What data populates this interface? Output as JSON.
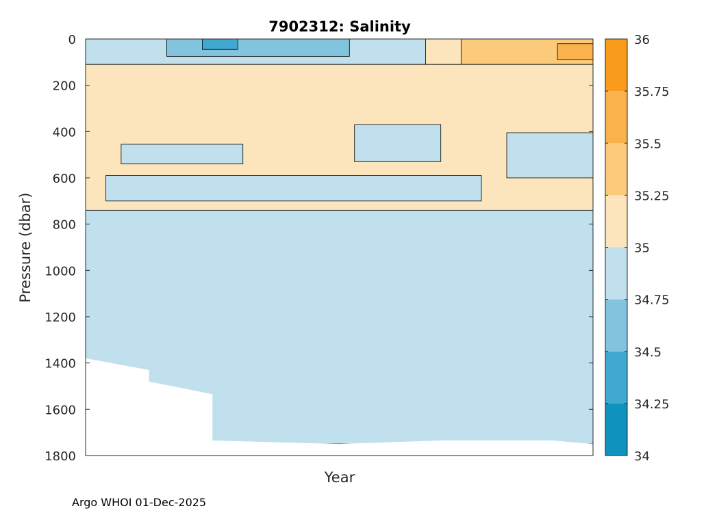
{
  "chart_data": {
    "type": "filled-contour",
    "title": "7902312:  Salinity",
    "xlabel": "Year",
    "ylabel": "Pressure (dbar)",
    "y_axis": {
      "range": [
        0,
        1800
      ],
      "reversed": true,
      "ticks": [
        0,
        200,
        400,
        600,
        800,
        1000,
        1200,
        1400,
        1600,
        1800
      ]
    },
    "x_axis": {
      "range": [
        0,
        1
      ],
      "tick_labels": []
    },
    "colorbar": {
      "range": [
        34,
        36
      ],
      "ticks": [
        34,
        34.25,
        34.5,
        34.75,
        35,
        35.25,
        35.5,
        35.75,
        36
      ],
      "levels": [
        {
          "from": 34.0,
          "to": 34.25,
          "color": "#0f93be"
        },
        {
          "from": 34.25,
          "to": 34.5,
          "color": "#41a9d0"
        },
        {
          "from": 34.5,
          "to": 34.75,
          "color": "#82c3de"
        },
        {
          "from": 34.75,
          "to": 35.0,
          "color": "#bfe0ec"
        },
        {
          "from": 35.0,
          "to": 35.25,
          "color": "#fce5bd"
        },
        {
          "from": 35.25,
          "to": 35.5,
          "color": "#fbca7a"
        },
        {
          "from": 35.5,
          "to": 35.75,
          "color": "#fab24c"
        },
        {
          "from": 35.75,
          "to": 36.0,
          "color": "#fa9c1b"
        }
      ]
    },
    "regions": [
      {
        "name": "surface-layer",
        "level_index": 3,
        "x": [
          0,
          1
        ],
        "p": [
          0,
          110
        ]
      },
      {
        "name": "surface-fresh-patch",
        "level_index": 2,
        "x": [
          0.16,
          0.52
        ],
        "p": [
          0,
          75
        ]
      },
      {
        "name": "surface-fresher-core",
        "level_index": 1,
        "x": [
          0.23,
          0.3
        ],
        "p": [
          0,
          45
        ]
      },
      {
        "name": "surface-saline-east",
        "level_index": 4,
        "x": [
          0.67,
          1
        ],
        "p": [
          0,
          110
        ]
      },
      {
        "name": "surface-saltier-east",
        "level_index": 5,
        "x": [
          0.74,
          1
        ],
        "p": [
          0,
          110
        ]
      },
      {
        "name": "surface-saltiest-east",
        "level_index": 6,
        "x": [
          0.93,
          1
        ],
        "p": [
          20,
          90
        ]
      },
      {
        "name": "central-saline-layer",
        "level_index": 4,
        "x": [
          0,
          1
        ],
        "p": [
          110,
          740
        ]
      },
      {
        "name": "intermediate-fresh-lens",
        "level_index": 3,
        "x": [
          0.07,
          0.31
        ],
        "p": [
          455,
          540
        ]
      },
      {
        "name": "intermediate-fresh-lens-2",
        "level_index": 3,
        "x": [
          0.53,
          0.7
        ],
        "p": [
          370,
          530
        ]
      },
      {
        "name": "intermediate-fresh-east",
        "level_index": 3,
        "x": [
          0.83,
          1
        ],
        "p": [
          405,
          600
        ]
      },
      {
        "name": "intermediate-interleaving",
        "level_index": 3,
        "x": [
          0.04,
          0.78
        ],
        "p": [
          590,
          700
        ]
      },
      {
        "name": "deep-water",
        "level_index": 3,
        "x": [
          0,
          1
        ],
        "p": [
          740,
          1750
        ]
      }
    ],
    "data_bottom": {
      "x": [
        0,
        0.125,
        0.125,
        0.25,
        0.25,
        0.5,
        0.7,
        0.92,
        1.0
      ],
      "p": [
        1380,
        1430,
        1480,
        1535,
        1735,
        1750,
        1735,
        1735,
        1750
      ]
    }
  },
  "footer": "Argo WHOI 01-Dec-2025"
}
